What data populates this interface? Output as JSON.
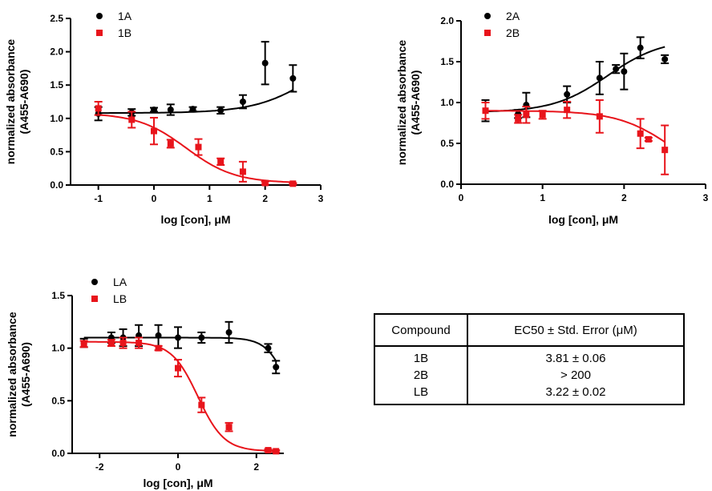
{
  "chart_data": [
    {
      "type": "scatter",
      "title": "",
      "xlabel": "log [con], μM",
      "ylabel": "normalized absorbance",
      "ylabel2": "(A455-A690)",
      "xlim": [
        -1.5,
        3
      ],
      "ylim": [
        0,
        2.5
      ],
      "xticks": [
        -1,
        0,
        1,
        2,
        3
      ],
      "yticks": [
        0.0,
        0.5,
        1.0,
        1.5,
        2.0,
        2.5
      ],
      "xtick_labels": [
        "-1",
        "0",
        "1",
        "2",
        "3"
      ],
      "ytick_labels": [
        "0.0",
        "0.5",
        "1.0",
        "1.5",
        "2.0",
        "2.5"
      ],
      "legend_position": "top-left",
      "series": [
        {
          "name": "1A",
          "color": "#000000",
          "marker": "circle",
          "x": [
            -1,
            -0.4,
            0,
            0.3,
            0.7,
            1.2,
            1.6,
            2.0,
            2.5
          ],
          "y": [
            1.07,
            1.09,
            1.13,
            1.13,
            1.14,
            1.12,
            1.25,
            1.83,
            1.6
          ],
          "err": [
            0.1,
            0.05,
            0.03,
            0.08,
            0.03,
            0.05,
            0.1,
            0.32,
            0.2
          ],
          "fit": {
            "bottom": 1.08,
            "top": 2.3,
            "logec50": 3.0,
            "hill": 0.8
          }
        },
        {
          "name": "1B",
          "color": "#e8141b",
          "marker": "square",
          "x": [
            -1,
            -0.4,
            0,
            0.3,
            0.8,
            1.2,
            1.6,
            2.0,
            2.5
          ],
          "y": [
            1.15,
            0.98,
            0.81,
            0.62,
            0.57,
            0.35,
            0.2,
            0.03,
            0.02
          ],
          "err": [
            0.1,
            0.12,
            0.2,
            0.06,
            0.12,
            0.05,
            0.15,
            0.02,
            0.01
          ],
          "fit": {
            "bottom": 0.03,
            "top": 1.08,
            "logec50": 0.581,
            "hill": -1.0
          }
        }
      ]
    },
    {
      "type": "scatter",
      "title": "",
      "xlabel": "log [con], μM",
      "ylabel": "normalized absorbance",
      "ylabel2": "(A455-A690)",
      "xlim": [
        0,
        3
      ],
      "ylim": [
        0,
        2.0
      ],
      "xticks": [
        0,
        1,
        2,
        3
      ],
      "yticks": [
        0.0,
        0.5,
        1.0,
        1.5,
        2.0
      ],
      "xtick_labels": [
        "0",
        "1",
        "2",
        "3"
      ],
      "ytick_labels": [
        "0.0",
        "0.5",
        "1.0",
        "1.5",
        "2.0"
      ],
      "legend_position": "top-left",
      "series": [
        {
          "name": "2A",
          "color": "#000000",
          "marker": "circle",
          "x": [
            0.3,
            0.7,
            0.8,
            1.3,
            1.7,
            1.9,
            2.0,
            2.2,
            2.5
          ],
          "y": [
            0.9,
            0.86,
            0.97,
            1.1,
            1.3,
            1.41,
            1.38,
            1.67,
            1.53
          ],
          "err": [
            0.13,
            0.05,
            0.15,
            0.1,
            0.2,
            0.05,
            0.22,
            0.13,
            0.05
          ],
          "fit": {
            "bottom": 0.88,
            "top": 1.78,
            "logec50": 1.8,
            "hill": 1.3
          }
        },
        {
          "name": "2B",
          "color": "#e8141b",
          "marker": "square",
          "x": [
            0.3,
            0.7,
            0.8,
            1.0,
            1.3,
            1.7,
            2.2,
            2.3,
            2.5
          ],
          "y": [
            0.9,
            0.8,
            0.85,
            0.85,
            0.91,
            0.83,
            0.62,
            0.55,
            0.42
          ],
          "err": [
            0.1,
            0.05,
            0.1,
            0.05,
            0.1,
            0.2,
            0.18,
            0.02,
            0.3
          ],
          "fit": {
            "bottom": 0.0,
            "top": 0.9,
            "logec50": 2.6,
            "hill": -1.3
          }
        }
      ]
    },
    {
      "type": "scatter",
      "title": "",
      "xlabel": "log [con], μM",
      "ylabel": "normalized absorbance",
      "ylabel2": "(A455-A690)",
      "xlim": [
        -2.7,
        2.7
      ],
      "ylim": [
        0,
        1.5
      ],
      "xticks": [
        -2,
        0,
        2
      ],
      "yticks": [
        0.0,
        0.5,
        1.0,
        1.5
      ],
      "xtick_labels": [
        "-2",
        "0",
        "2"
      ],
      "ytick_labels": [
        "0.0",
        "0.5",
        "1.0",
        "1.5"
      ],
      "legend_position": "top-left",
      "series": [
        {
          "name": "LA",
          "color": "#000000",
          "marker": "circle",
          "x": [
            -2.4,
            -1.7,
            -1.4,
            -1.0,
            -0.5,
            0.0,
            0.6,
            1.3,
            2.3,
            2.5
          ],
          "y": [
            1.05,
            1.1,
            1.1,
            1.12,
            1.12,
            1.1,
            1.1,
            1.15,
            1.0,
            0.82
          ],
          "err": [
            0.04,
            0.05,
            0.08,
            0.1,
            0.1,
            0.1,
            0.05,
            0.1,
            0.04,
            0.06
          ],
          "fit": {
            "bottom": 0.0,
            "top": 1.1,
            "logec50": 2.9,
            "hill": -1.5
          }
        },
        {
          "name": "LB",
          "color": "#e8141b",
          "marker": "square",
          "x": [
            -2.4,
            -1.7,
            -1.4,
            -1.0,
            -0.5,
            0.0,
            0.6,
            1.3,
            2.3,
            2.5
          ],
          "y": [
            1.04,
            1.05,
            1.05,
            1.05,
            1.0,
            0.81,
            0.46,
            0.25,
            0.03,
            0.02
          ],
          "err": [
            0.03,
            0.03,
            0.05,
            0.05,
            0.02,
            0.08,
            0.07,
            0.04,
            0.01,
            0.01
          ],
          "fit": {
            "bottom": 0.02,
            "top": 1.06,
            "logec50": 0.508,
            "hill": -1.3
          }
        }
      ]
    }
  ],
  "table": {
    "headers": [
      "Compound",
      "EC50 ± Std. Error (μM)"
    ],
    "rows": [
      [
        "1B",
        "3.81 ± 0.06"
      ],
      [
        "2B",
        "> 200"
      ],
      [
        "LB",
        "3.22 ± 0.02"
      ]
    ]
  }
}
